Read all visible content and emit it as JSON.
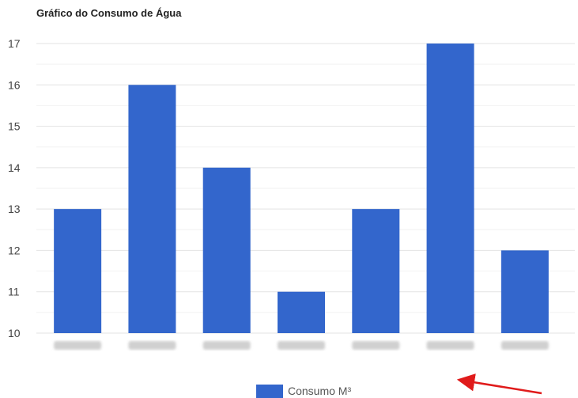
{
  "chart_data": {
    "type": "bar",
    "title": "Gráfico do Consumo de Água",
    "categories": [
      "",
      "",
      "",
      "",
      "",
      "",
      ""
    ],
    "values": [
      13,
      16,
      14,
      11,
      13,
      17,
      12
    ],
    "series": [
      {
        "name": "Consumo M³",
        "values": [
          13,
          16,
          14,
          11,
          13,
          17,
          12
        ]
      }
    ],
    "ylim": [
      10,
      17
    ],
    "yticks": [
      "10",
      "11",
      "12",
      "13",
      "14",
      "15",
      "16",
      "17"
    ],
    "grid": true,
    "legend_position": "bottom",
    "colors": {
      "bar": "#3366cc",
      "grid": "#e3e3e3",
      "annotation_arrow": "#e01b1b"
    }
  }
}
